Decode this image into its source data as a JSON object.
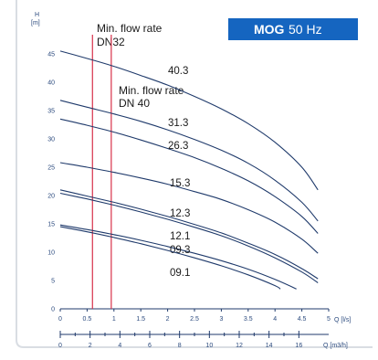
{
  "badge": {
    "title": "MOG",
    "subtitle": "50 Hz",
    "color": "#1565c0"
  },
  "chart_data": {
    "type": "line",
    "ylabel_top": "H",
    "ylabel_unit": "[m]",
    "xlabel": "Q [l/s]",
    "x2label": "Q [m3/h]",
    "xlim": [
      0,
      5
    ],
    "ylim": [
      0,
      50
    ],
    "x_ticks": [
      "0",
      "0.5",
      "1",
      "1.5",
      "2",
      "2.5",
      "3",
      "3.5",
      "4",
      "4.5",
      "5"
    ],
    "x2_ticks": [
      "0",
      "2",
      "4",
      "6",
      "8",
      "10",
      "12",
      "14",
      "16"
    ],
    "y_ticks": [
      "0",
      "5",
      "10",
      "15",
      "20",
      "25",
      "30",
      "35",
      "40",
      "45"
    ],
    "flow_lines": [
      {
        "label_line1": "Min. flow rate",
        "label_line2": "DN32",
        "x": 0.6,
        "color": "#d8304a"
      },
      {
        "label_line1": "Min. flow rate",
        "label_line2": "DN 40",
        "x": 0.95,
        "color": "#d8304a"
      }
    ],
    "series": [
      {
        "name": "40.3",
        "x": [
          0,
          0.5,
          1,
          1.5,
          2,
          2.5,
          3,
          3.5,
          4,
          4.5,
          4.8
        ],
        "y": [
          45.5,
          44.2,
          42.8,
          41.2,
          39.5,
          37.5,
          35.3,
          32.7,
          29.4,
          25.0,
          21.0
        ]
      },
      {
        "name": "31.3",
        "x": [
          0,
          0.5,
          1,
          1.5,
          2,
          2.5,
          3,
          3.5,
          4,
          4.5,
          4.8
        ],
        "y": [
          36.8,
          35.6,
          34.4,
          33.1,
          31.6,
          29.9,
          28.0,
          25.7,
          22.7,
          18.8,
          15.5
        ]
      },
      {
        "name": "26.3",
        "x": [
          0,
          0.5,
          1,
          1.5,
          2,
          2.5,
          3,
          3.5,
          4,
          4.5,
          4.8
        ],
        "y": [
          33.5,
          32.4,
          31.2,
          29.8,
          28.3,
          26.7,
          24.8,
          22.6,
          19.8,
          16.3,
          13.3
        ]
      },
      {
        "name": "15.3",
        "x": [
          0,
          0.5,
          1,
          1.5,
          2,
          2.5,
          3,
          3.5,
          4,
          4.5,
          4.8
        ],
        "y": [
          25.8,
          25.0,
          24.1,
          23.1,
          22.0,
          20.7,
          19.3,
          17.5,
          15.3,
          12.3,
          9.8
        ]
      },
      {
        "name": "12.3",
        "x": [
          0,
          0.5,
          1,
          1.5,
          2,
          2.5,
          3,
          3.5,
          4,
          4.5,
          4.8
        ],
        "y": [
          21.0,
          19.9,
          18.8,
          17.6,
          16.3,
          14.9,
          13.4,
          11.6,
          9.6,
          7.1,
          5.3
        ]
      },
      {
        "name": "12.1",
        "x": [
          0,
          0.5,
          1,
          1.5,
          2,
          2.5,
          3,
          3.5,
          4,
          4.5,
          4.8
        ],
        "y": [
          20.4,
          19.4,
          18.3,
          17.1,
          15.8,
          14.4,
          12.9,
          11.1,
          9.0,
          6.5,
          4.6
        ]
      },
      {
        "name": "09.3",
        "x": [
          0,
          0.5,
          1,
          1.5,
          2,
          2.5,
          3,
          3.5,
          4,
          4.4
        ],
        "y": [
          14.8,
          14.0,
          13.1,
          12.1,
          11.0,
          9.8,
          8.5,
          7.0,
          5.2,
          3.5
        ]
      },
      {
        "name": "09.1",
        "x": [
          0,
          0.5,
          1,
          1.5,
          2,
          2.5,
          3,
          3.5,
          4,
          4.1
        ],
        "y": [
          14.5,
          13.6,
          12.6,
          11.5,
          10.3,
          9.0,
          7.6,
          6.0,
          4.1,
          3.5
        ]
      }
    ]
  }
}
